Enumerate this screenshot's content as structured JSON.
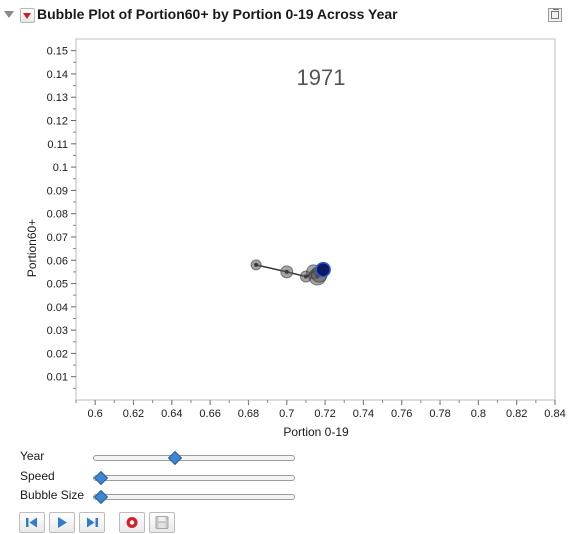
{
  "header": {
    "title": "Bubble Plot of Portion60+ by Portion 0-19 Across Year"
  },
  "chart_data": {
    "type": "scatter",
    "subtype": "bubble-trail",
    "current_year_label": "1971",
    "xlabel": "Portion 0-19",
    "ylabel": "Portion60+",
    "xlim": [
      0.59,
      0.84
    ],
    "ylim": [
      0.0,
      0.155
    ],
    "x_ticks": [
      "0.6",
      "0.62",
      "0.64",
      "0.66",
      "0.68",
      "0.7",
      "0.72",
      "0.74",
      "0.76",
      "0.78",
      "0.8",
      "0.82",
      "0.84"
    ],
    "y_ticks": [
      "0.01",
      "0.02",
      "0.03",
      "0.04",
      "0.05",
      "0.06",
      "0.07",
      "0.08",
      "0.09",
      "0.1",
      "0.11",
      "0.12",
      "0.13",
      "0.14",
      "0.15"
    ],
    "grid": false,
    "trail": [
      {
        "x": 0.684,
        "y": 0.058
      },
      {
        "x": 0.7,
        "y": 0.055
      },
      {
        "x": 0.71,
        "y": 0.053
      },
      {
        "x": 0.714,
        "y": 0.055
      },
      {
        "x": 0.716,
        "y": 0.053
      },
      {
        "x": 0.717,
        "y": 0.054
      }
    ],
    "current_point": {
      "x": 0.719,
      "y": 0.056
    },
    "colors": {
      "trail": "#3a3a3a",
      "current": "#0c1a66",
      "current_ring": "#2d5bd6"
    }
  },
  "controls": {
    "year": {
      "label": "Year",
      "value": 0.4
    },
    "speed": {
      "label": "Speed",
      "value": 0.03
    },
    "bubble_size": {
      "label": "Bubble Size",
      "value": 0.03
    }
  },
  "buttons": {
    "step_back_icon": "step-back-icon",
    "play_icon": "play-icon",
    "step_forward_icon": "step-forward-icon",
    "record_icon": "record-icon",
    "save_icon": "save-icon"
  }
}
